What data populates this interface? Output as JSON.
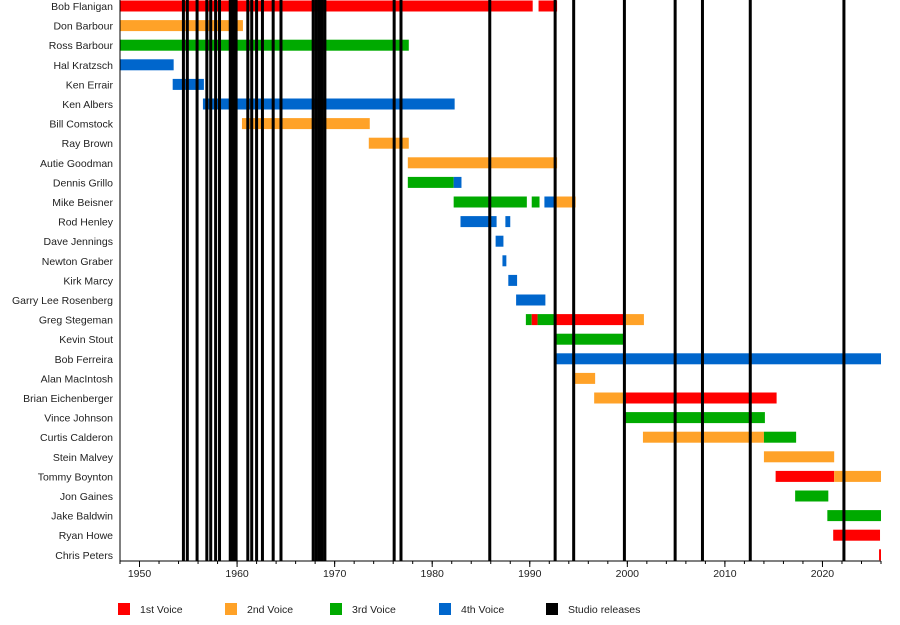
{
  "chart_data": {
    "type": "timeline",
    "xlim": [
      1948,
      2026
    ],
    "x_ticks": [
      1950,
      1960,
      1970,
      1980,
      1990,
      2000,
      2010,
      2020
    ],
    "grid": false,
    "legend_position": "bottom",
    "legend": [
      {
        "key": "1st",
        "label": "1st Voice",
        "color": "#ff0000"
      },
      {
        "key": "2nd",
        "label": "2nd Voice",
        "color": "#ffa228"
      },
      {
        "key": "3rd",
        "label": "3rd Voice",
        "color": "#00aa00"
      },
      {
        "key": "4th",
        "label": "4th Voice",
        "color": "#0066cc"
      },
      {
        "key": "studio",
        "label": "Studio releases",
        "color": "#000000"
      }
    ],
    "members": [
      {
        "name": "Bob Flanigan",
        "spans": [
          [
            "1st",
            1948,
            1990.3
          ],
          [
            "1st",
            1990.9,
            1992.8
          ]
        ]
      },
      {
        "name": "Don Barbour",
        "spans": [
          [
            "2nd",
            1948,
            1960.6
          ]
        ]
      },
      {
        "name": "Ross Barbour",
        "spans": [
          [
            "3rd",
            1948,
            1977.6
          ]
        ]
      },
      {
        "name": "Hal Kratzsch",
        "spans": [
          [
            "4th",
            1948,
            1953.5
          ]
        ]
      },
      {
        "name": "Ken Errair",
        "spans": [
          [
            "4th",
            1953.4,
            1956.6
          ]
        ]
      },
      {
        "name": "Ken Albers",
        "spans": [
          [
            "4th",
            1956.5,
            1982.3
          ]
        ]
      },
      {
        "name": "Bill Comstock",
        "spans": [
          [
            "2nd",
            1960.5,
            1973.6
          ]
        ]
      },
      {
        "name": "Ray Brown",
        "spans": [
          [
            "2nd",
            1973.5,
            1977.6
          ]
        ]
      },
      {
        "name": "Autie Goodman",
        "spans": [
          [
            "2nd",
            1977.5,
            1992.8
          ]
        ]
      },
      {
        "name": "Dennis Grillo",
        "spans": [
          [
            "3rd",
            1977.5,
            1982.2
          ],
          [
            "4th",
            1982.2,
            1983
          ]
        ]
      },
      {
        "name": "Mike Beisner",
        "spans": [
          [
            "3rd",
            1982.2,
            1989.7
          ],
          [
            "3rd",
            1990.2,
            1991
          ],
          [
            "4th",
            1991.5,
            1992.7
          ],
          [
            "2nd",
            1992.7,
            1994.7
          ]
        ]
      },
      {
        "name": "Rod Henley",
        "spans": [
          [
            "4th",
            1982.9,
            1986.6
          ],
          [
            "4th",
            1987.5,
            1988
          ]
        ]
      },
      {
        "name": "Dave Jennings",
        "spans": [
          [
            "4th",
            1986.5,
            1987.3
          ]
        ]
      },
      {
        "name": "Newton Graber",
        "spans": [
          [
            "4th",
            1987.2,
            1987.6
          ]
        ]
      },
      {
        "name": "Kirk Marcy",
        "spans": [
          [
            "4th",
            1987.8,
            1988.7
          ]
        ]
      },
      {
        "name": "Garry Lee Rosenberg",
        "spans": [
          [
            "4th",
            1988.6,
            1991.6
          ]
        ]
      },
      {
        "name": "Greg Stegeman",
        "spans": [
          [
            "3rd",
            1989.6,
            1990.2
          ],
          [
            "1st",
            1990.2,
            1990.8
          ],
          [
            "3rd",
            1990.8,
            1992.7
          ],
          [
            "1st",
            1992.7,
            1999.6
          ],
          [
            "2nd",
            1999.6,
            2001.7
          ]
        ]
      },
      {
        "name": "Kevin Stout",
        "spans": [
          [
            "3rd",
            1992.7,
            1999.7
          ]
        ]
      },
      {
        "name": "Bob Ferreira",
        "spans": [
          [
            "4th",
            1992.7,
            2026
          ]
        ]
      },
      {
        "name": "Alan MacIntosh",
        "spans": [
          [
            "2nd",
            1994.6,
            1996.7
          ]
        ]
      },
      {
        "name": "Brian Eichenberger",
        "spans": [
          [
            "2nd",
            1996.6,
            1999.6
          ],
          [
            "1st",
            1999.6,
            2015.3
          ]
        ]
      },
      {
        "name": "Vince Johnson",
        "spans": [
          [
            "3rd",
            1999.6,
            2014.1
          ]
        ]
      },
      {
        "name": "Curtis Calderon",
        "spans": [
          [
            "2nd",
            2001.6,
            2014
          ],
          [
            "3rd",
            2014,
            2017.3
          ]
        ]
      },
      {
        "name": "Stein Malvey",
        "spans": [
          [
            "2nd",
            2014,
            2021.2
          ]
        ]
      },
      {
        "name": "Tommy Boynton",
        "spans": [
          [
            "1st",
            2015.2,
            2021.2
          ],
          [
            "2nd",
            2021.2,
            2026
          ]
        ]
      },
      {
        "name": "Jon Gaines",
        "spans": [
          [
            "3rd",
            2017.2,
            2020.6
          ]
        ]
      },
      {
        "name": "Jake Baldwin",
        "spans": [
          [
            "3rd",
            2020.5,
            2026
          ]
        ]
      },
      {
        "name": "Ryan Howe",
        "spans": [
          [
            "1st",
            2021.1,
            2025.9
          ]
        ]
      },
      {
        "name": "Chris Peters",
        "spans": [
          [
            "1st",
            2025.8,
            2026
          ]
        ]
      }
    ],
    "studio_releases": [
      1954.5,
      1954.9,
      1955.9,
      1956.9,
      1957.3,
      1957.8,
      1958.2,
      1959.3,
      1959.5,
      1959.7,
      1959.9,
      1961.1,
      1961.5,
      1962,
      1962.6,
      1963.7,
      1964.5,
      1967.8,
      1968.1,
      1968.4,
      1968.7,
      1969,
      1976.1,
      1976.8,
      1985.9,
      1992.6,
      1994.5,
      1999.7,
      2004.9,
      2007.7,
      2012.6,
      2022.2
    ]
  }
}
